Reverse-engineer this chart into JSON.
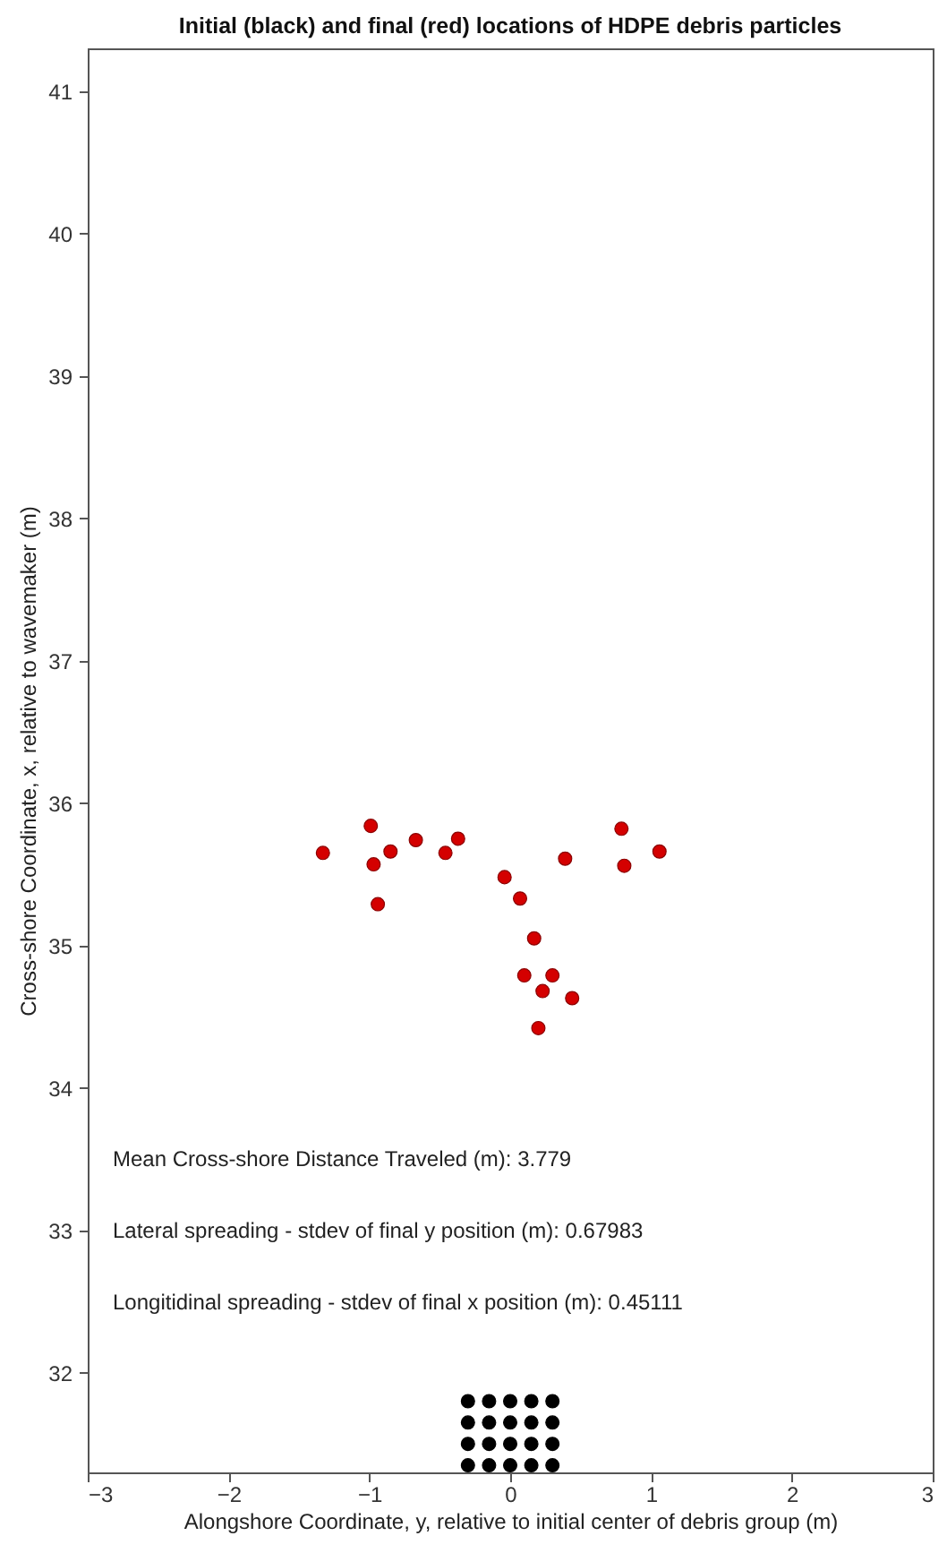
{
  "chart_data": {
    "type": "scatter",
    "title": "Initial (black) and final (red) locations of HDPE debris particles",
    "xlabel": "Alongshore Coordinate, y, relative to initial center of debris group (m)",
    "ylabel": "Cross-shore Coordinate, x, relative to wavemaker (m)",
    "xlim": [
      -3,
      3
    ],
    "xticks": [
      -3,
      -2,
      -1,
      0,
      1,
      2,
      3
    ],
    "ylim": [
      31.3,
      41.3
    ],
    "yticks": [
      32,
      33,
      34,
      35,
      36,
      37,
      38,
      39,
      40,
      41
    ],
    "grid": false,
    "legend": false,
    "marker": "circle",
    "series": [
      {
        "color": "#000000",
        "x": [
          -0.3,
          -0.15,
          0,
          0.15,
          0.3,
          -0.3,
          -0.15,
          0,
          0.15,
          0.3,
          -0.3,
          -0.15,
          0,
          0.15,
          0.3,
          -0.3,
          -0.15,
          0,
          0.15,
          0.3
        ],
        "values": [
          31.8,
          31.8,
          31.8,
          31.8,
          31.8,
          31.65,
          31.65,
          31.65,
          31.65,
          31.65,
          31.5,
          31.5,
          31.5,
          31.5,
          31.5,
          31.35,
          31.35,
          31.35,
          31.35,
          31.35
        ]
      },
      {
        "color": "#d40000",
        "x": [
          -1.33,
          -0.99,
          -0.85,
          -0.97,
          -0.67,
          -0.46,
          -0.37,
          -0.94,
          -0.04,
          0.07,
          0.17,
          0.1,
          0.3,
          0.23,
          0.44,
          0.2,
          0.39,
          0.79,
          0.81,
          1.06
        ],
        "values": [
          35.65,
          35.84,
          35.66,
          35.57,
          35.74,
          35.65,
          35.75,
          35.29,
          35.48,
          35.33,
          35.05,
          34.79,
          34.79,
          34.68,
          34.63,
          34.42,
          35.61,
          35.82,
          35.56,
          35.66
        ]
      }
    ],
    "annotations": [
      "Mean Cross-shore Distance Traveled (m): 3.779",
      "Lateral spreading - stdev of final y position (m): 0.67983",
      "Longitidinal spreading - stdev of final x position (m): 0.45111"
    ]
  }
}
